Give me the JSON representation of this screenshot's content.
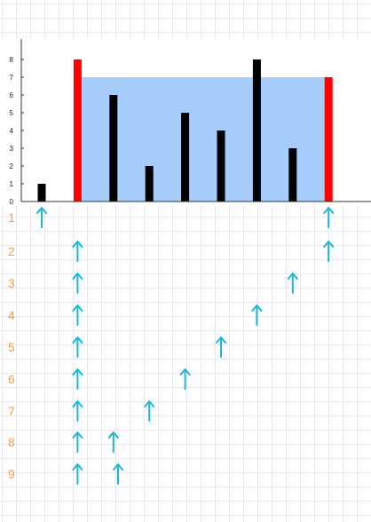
{
  "chart_data": {
    "type": "bar",
    "x": [
      1,
      2,
      3,
      4,
      5,
      6,
      7,
      8,
      9
    ],
    "values": [
      1,
      8,
      6,
      2,
      5,
      4,
      8,
      3,
      7
    ],
    "highlighted_indices": [
      1,
      8
    ],
    "water_level": 7,
    "ylim": [
      0,
      8
    ],
    "yticks": [
      "0",
      "1",
      "2",
      "3",
      "4",
      "5",
      "6",
      "7",
      "8"
    ],
    "bar_color": "#000000",
    "highlight_color": "#ff0000",
    "water_color": "#a6cdfa",
    "grid": false
  },
  "steps": [
    {
      "label": "1",
      "left": 0,
      "right": 8
    },
    {
      "label": "2",
      "left": 1,
      "right": 8
    },
    {
      "label": "3",
      "left": 1,
      "right": 7
    },
    {
      "label": "4",
      "left": 1,
      "right": 6
    },
    {
      "label": "5",
      "left": 1,
      "right": 5
    },
    {
      "label": "6",
      "left": 1,
      "right": 4
    },
    {
      "label": "7",
      "left": 1,
      "right": 3
    },
    {
      "label": "8",
      "left": 1,
      "right": 2
    },
    {
      "label": "9",
      "left": 1,
      "right": 2
    }
  ],
  "pointer_icon": "up-arrow-icon",
  "pointer_color": "#1ab8d8",
  "step_label_color": "#f0a24a"
}
